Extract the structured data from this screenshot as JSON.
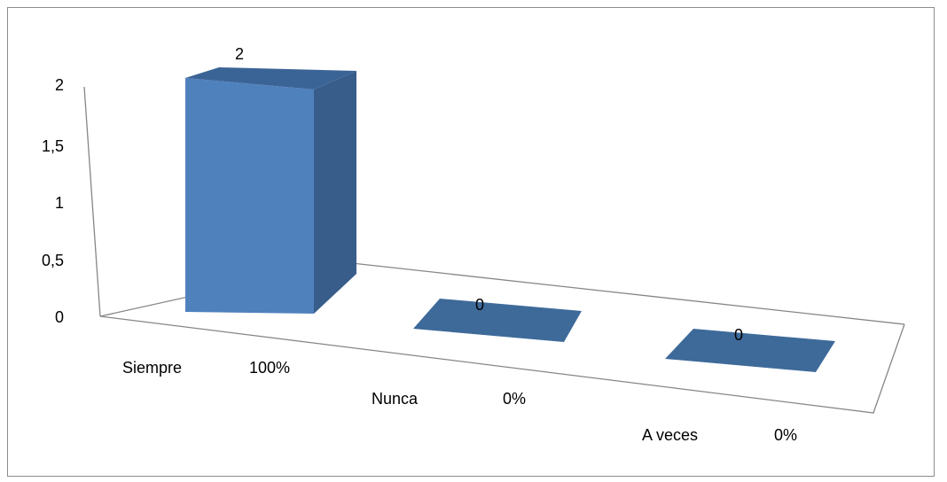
{
  "chart_data": {
    "type": "bar",
    "three_d": true,
    "categories": [
      "Siempre",
      "Nunca",
      "A veces"
    ],
    "category_percent_labels": [
      "100%",
      "0%",
      "0%"
    ],
    "values": [
      2,
      0,
      0
    ],
    "data_labels": [
      "2",
      "0",
      "0"
    ],
    "y_ticks": [
      "0",
      "0,5",
      "1",
      "1,5",
      "2"
    ],
    "ylim": [
      0,
      2
    ],
    "grid": false,
    "legend": "none",
    "colors": {
      "bar_front": "#4f81bd",
      "bar_side": "#385d8a",
      "bar_top": "#3b6496",
      "zero_bar": "#3e6a9a",
      "axis": "#868686",
      "frame": "#8c8c8c"
    }
  }
}
